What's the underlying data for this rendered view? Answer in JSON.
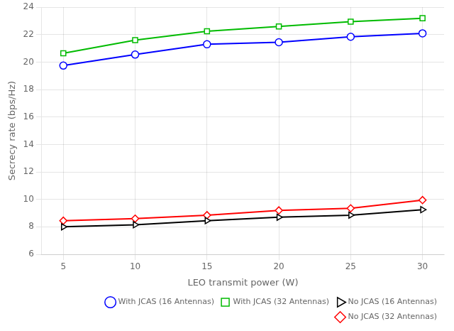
{
  "chart_data": {
    "type": "line",
    "x_label": "LEO transmit power (W)",
    "y_label": "Secrecy rate (bps/Hz)",
    "x": [
      5,
      10,
      15,
      20,
      25,
      30
    ],
    "series": [
      {
        "name": "With JCAS (16 Antennas)",
        "color": "#0000ff",
        "marker": "circle",
        "values": [
          19.75,
          20.55,
          21.3,
          21.45,
          21.85,
          22.1
        ]
      },
      {
        "name": "With JCAS (32 Antennas)",
        "color": "#00bb00",
        "marker": "square",
        "values": [
          20.65,
          21.6,
          22.25,
          22.6,
          22.95,
          23.2
        ]
      },
      {
        "name": "No JCAS (16 Antennas)",
        "color": "#000000",
        "marker": "triangle-right",
        "values": [
          8.0,
          8.15,
          8.45,
          8.7,
          8.85,
          9.25
        ]
      },
      {
        "name": "No JCAS (32 Antennas)",
        "color": "#ff0000",
        "marker": "diamond",
        "values": [
          8.45,
          8.6,
          8.85,
          9.2,
          9.35,
          9.95
        ]
      }
    ],
    "xlim": [
      3.5,
      31.5
    ],
    "xticks": [
      5,
      10,
      15,
      20,
      25,
      30
    ],
    "ylim": [
      6,
      24
    ],
    "yticks": [
      6,
      8,
      10,
      12,
      14,
      16,
      18,
      20,
      22,
      24
    ],
    "grid": true,
    "legend": "lower right"
  }
}
